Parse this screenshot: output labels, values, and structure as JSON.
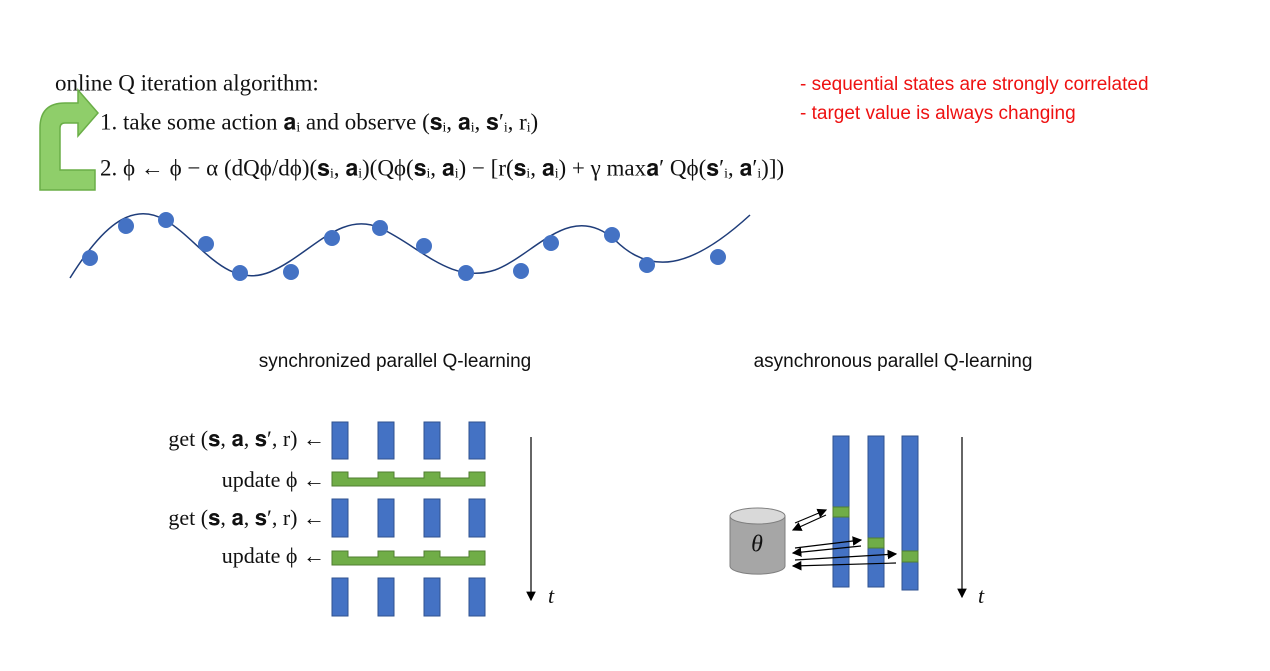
{
  "slide": {
    "algorithm": {
      "title": "online Q iteration algorithm:",
      "steps": [
        "1. take some action 𝐚ᵢ and observe (𝐬ᵢ, 𝐚ᵢ, 𝐬′ᵢ, rᵢ)",
        "2. ϕ ← ϕ − α (dQϕ/dϕ)(𝐬ᵢ, 𝐚ᵢ)(Qϕ(𝐬ᵢ, 𝐚ᵢ) − [r(𝐬ᵢ, 𝐚ᵢ) + γ max𝐚′ Qϕ(𝐬′ᵢ, 𝐚′ᵢ)])"
      ]
    },
    "notes": [
      "- sequential states are strongly correlated",
      "- target value is always changing"
    ],
    "synchronized": {
      "title": "synchronized parallel Q-learning",
      "row_labels": [
        "get (𝐬, 𝐚, 𝐬′, r) ←",
        "update ϕ ←",
        "get (𝐬, 𝐚, 𝐬′, r) ←",
        "update ϕ ←"
      ],
      "time_label": "t"
    },
    "asynchronous": {
      "title": "asynchronous parallel Q-learning",
      "store_label": "θ",
      "time_label": "t"
    }
  }
}
